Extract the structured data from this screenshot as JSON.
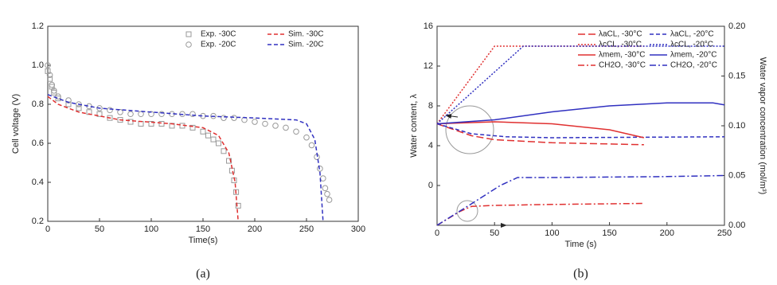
{
  "chart_data": [
    {
      "type": "line",
      "x_label": "Time(s)",
      "y_label": "Cell voltage (V)",
      "caption": "(a)",
      "xlim": [
        0,
        300
      ],
      "xticks": [
        0,
        50,
        100,
        150,
        200,
        250,
        300
      ],
      "ylim": [
        0.2,
        1.2
      ],
      "yticks": [
        0.2,
        0.4,
        0.6,
        0.8,
        {
          "value": 1,
          "label": "1.0"
        },
        1.2
      ],
      "legend": "upper right",
      "series": [
        {
          "name": "Exp. -30C",
          "color": "#999999",
          "marker": "square",
          "dash": "none",
          "x": [
            0,
            2,
            4,
            6,
            10,
            20,
            30,
            40,
            50,
            60,
            70,
            80,
            90,
            100,
            110,
            120,
            130,
            140,
            150,
            155,
            160,
            165,
            170,
            175,
            178,
            180,
            182,
            184
          ],
          "values": [
            0.97,
            0.93,
            0.89,
            0.86,
            0.83,
            0.8,
            0.78,
            0.76,
            0.75,
            0.73,
            0.72,
            0.71,
            0.7,
            0.7,
            0.7,
            0.69,
            0.69,
            0.68,
            0.66,
            0.64,
            0.62,
            0.6,
            0.56,
            0.51,
            0.46,
            0.41,
            0.35,
            0.28
          ]
        },
        {
          "name": "Sim. -30C",
          "color": "#e03030",
          "marker": "none",
          "dash": "dashed",
          "x": [
            0,
            10,
            30,
            70,
            120,
            150,
            165,
            175,
            181,
            184
          ],
          "values": [
            0.84,
            0.8,
            0.76,
            0.72,
            0.7,
            0.68,
            0.64,
            0.55,
            0.4,
            0.2
          ]
        },
        {
          "name": "Exp. -20C",
          "color": "#999999",
          "marker": "circle",
          "dash": "none",
          "x": [
            0,
            2,
            4,
            6,
            10,
            20,
            30,
            40,
            50,
            60,
            70,
            80,
            90,
            100,
            110,
            120,
            130,
            140,
            150,
            160,
            170,
            180,
            190,
            200,
            210,
            220,
            230,
            240,
            250,
            255,
            260,
            263,
            266,
            268,
            270,
            272
          ],
          "values": [
            1.0,
            0.95,
            0.9,
            0.87,
            0.84,
            0.82,
            0.8,
            0.79,
            0.78,
            0.77,
            0.76,
            0.75,
            0.75,
            0.75,
            0.75,
            0.75,
            0.75,
            0.75,
            0.74,
            0.74,
            0.73,
            0.73,
            0.72,
            0.71,
            0.7,
            0.69,
            0.68,
            0.66,
            0.63,
            0.59,
            0.53,
            0.47,
            0.42,
            0.37,
            0.34,
            0.31
          ]
        },
        {
          "name": "Sim. -20C",
          "color": "#3030c0",
          "marker": "none",
          "dash": "dashed",
          "x": [
            0,
            20,
            50,
            100,
            150,
            200,
            240,
            250,
            258,
            263,
            266
          ],
          "values": [
            0.85,
            0.81,
            0.78,
            0.76,
            0.74,
            0.73,
            0.72,
            0.7,
            0.62,
            0.45,
            0.2
          ]
        }
      ]
    },
    {
      "type": "line",
      "x_label": "Time (s)",
      "y_label": "Water content, λ",
      "y2_label": "Water vapor concentration (mol/m³)",
      "caption": "(b)",
      "xlim": [
        0,
        250
      ],
      "xticks": [
        0,
        50,
        100,
        150,
        200,
        250
      ],
      "ylim": [
        -4,
        16
      ],
      "yticks": [
        0,
        4,
        8,
        12,
        16
      ],
      "y2lim": [
        0,
        0.2
      ],
      "y2ticks": [
        {
          "value": 0,
          "label": "0.00"
        },
        {
          "value": 0.05,
          "label": "0.05"
        },
        {
          "value": 0.1,
          "label": "0.10"
        },
        {
          "value": 0.15,
          "label": "0.15"
        },
        {
          "value": 0.2,
          "label": "0.20"
        }
      ],
      "legend": "upper right",
      "series": [
        {
          "name": "λaCL, -30°C",
          "color": "#e03030",
          "marker": "none",
          "dash": "longdash",
          "x": [
            0,
            30,
            50,
            100,
            180
          ],
          "values": [
            6.2,
            5.0,
            4.6,
            4.3,
            4.1
          ]
        },
        {
          "name": "λaCL, -20°C",
          "color": "#3030c0",
          "marker": "none",
          "dash": "dashed",
          "x": [
            0,
            30,
            60,
            100,
            250
          ],
          "values": [
            6.2,
            5.2,
            4.9,
            4.8,
            4.9
          ]
        },
        {
          "name": "λcCL, -30°C",
          "color": "#e03030",
          "marker": "none",
          "dash": "dotted",
          "x": [
            0,
            50,
            180
          ],
          "values": [
            6.2,
            14,
            14
          ]
        },
        {
          "name": "λcCL, -20°C",
          "color": "#3030c0",
          "marker": "none",
          "dash": "dotted",
          "x": [
            0,
            75,
            250
          ],
          "values": [
            6.2,
            14,
            14
          ]
        },
        {
          "name": "λmem, -30°C",
          "color": "#e03030",
          "marker": "none",
          "dash": "solid",
          "x": [
            0,
            50,
            100,
            150,
            180
          ],
          "values": [
            6.2,
            6.4,
            6.2,
            5.6,
            4.8
          ]
        },
        {
          "name": "λmem, -20°C",
          "color": "#3030c0",
          "marker": "none",
          "dash": "solid",
          "x": [
            0,
            50,
            100,
            150,
            200,
            240,
            250
          ],
          "values": [
            6.2,
            6.6,
            7.4,
            8.0,
            8.3,
            8.3,
            8.1
          ]
        },
        {
          "name": "CH2O, -30°C",
          "color": "#e03030",
          "marker": "none",
          "dash": "dashdot",
          "axis": "y2",
          "x": [
            0,
            10,
            20,
            30,
            50,
            100,
            180
          ],
          "values": [
            0,
            0.007,
            0.014,
            0.019,
            0.02,
            0.021,
            0.022
          ]
        },
        {
          "name": "CH2O, -20°C",
          "color": "#3030c0",
          "marker": "none",
          "dash": "dashdot",
          "axis": "y2",
          "x": [
            0,
            25,
            55,
            70,
            100,
            200,
            250
          ],
          "values": [
            0,
            0.018,
            0.04,
            0.048,
            0.048,
            0.049,
            0.05
          ]
        }
      ]
    }
  ]
}
